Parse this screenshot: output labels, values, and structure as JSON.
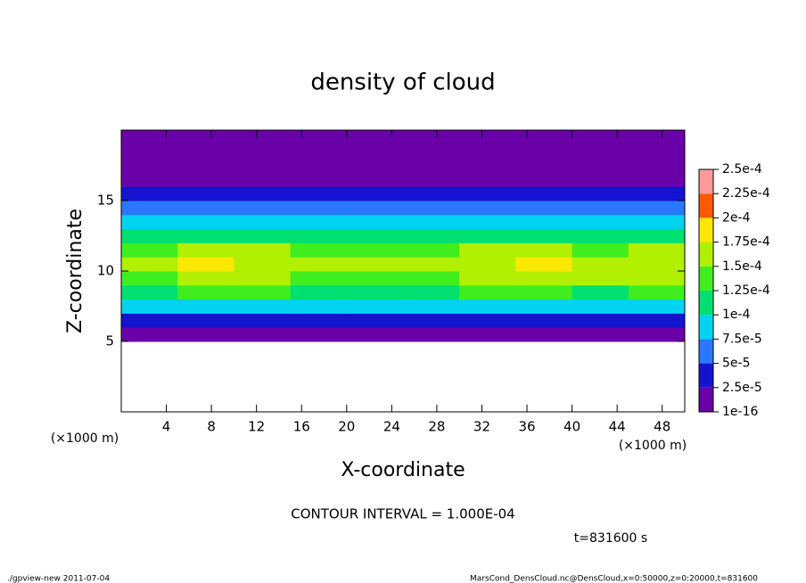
{
  "chart_data": {
    "type": "heatmap",
    "title": "density of cloud",
    "x_label": "X-coordinate",
    "y_label": "Z-coordinate",
    "x_unit": "(×1000 m)",
    "y_unit": "(×1000 m)",
    "annotation": "CONTOUR INTERVAL = 1.000E-04",
    "time_label": "t=831600 s",
    "footer_left": "./gpview-new  2011-07-04",
    "footer_right": "MarsCond_DensCloud.nc@DensCloud,x=0:50000,z=0:20000,t=831600",
    "xlim": [
      0,
      50
    ],
    "ylim": [
      0,
      20
    ],
    "xticks": [
      4,
      8,
      12,
      16,
      20,
      24,
      28,
      32,
      36,
      40,
      44,
      48
    ],
    "yticks": [
      5,
      10,
      15
    ],
    "x": [
      2.5,
      7.5,
      12.5,
      17.5,
      22.5,
      27.5,
      32.5,
      37.5,
      42.5,
      47.5
    ],
    "z": [
      0.5,
      1.5,
      2.5,
      3.5,
      4.5,
      5.5,
      6.5,
      7.5,
      8.5,
      9.5,
      10.5,
      11.5,
      12.5,
      13.5,
      14.5,
      15.5,
      16.5,
      17.5,
      18.5,
      19.5
    ],
    "values": [
      [
        null,
        null,
        null,
        null,
        null,
        null,
        null,
        null,
        null,
        null
      ],
      [
        null,
        null,
        null,
        null,
        null,
        null,
        null,
        null,
        null,
        null
      ],
      [
        null,
        null,
        null,
        null,
        null,
        null,
        null,
        null,
        null,
        null
      ],
      [
        null,
        null,
        null,
        null,
        null,
        null,
        null,
        null,
        null,
        null
      ],
      [
        null,
        null,
        null,
        null,
        null,
        null,
        null,
        null,
        null,
        null
      ],
      [
        1e-05,
        1e-05,
        1e-05,
        1e-05,
        1e-05,
        1e-05,
        1e-05,
        1e-05,
        1e-05,
        1e-05
      ],
      [
        4e-05,
        4e-05,
        4.5e-05,
        4e-05,
        4e-05,
        4e-05,
        4e-05,
        4.5e-05,
        4e-05,
        4e-05
      ],
      [
        8e-05,
        8.5e-05,
        8e-05,
        8e-05,
        8.5e-05,
        8e-05,
        8e-05,
        8.5e-05,
        8e-05,
        8e-05
      ],
      [
        0.00012,
        0.00013,
        0.000125,
        0.00012,
        0.00012,
        0.00012,
        0.000125,
        0.00013,
        0.00012,
        0.000125
      ],
      [
        0.000145,
        0.00016,
        0.000155,
        0.000145,
        0.00014,
        0.000145,
        0.000155,
        0.00016,
        0.00015,
        0.000155
      ],
      [
        0.000155,
        0.00018,
        0.00017,
        0.000155,
        0.00015,
        0.000155,
        0.00017,
        0.000175,
        0.00016,
        0.00017
      ],
      [
        0.000135,
        0.00016,
        0.00015,
        0.00014,
        0.000135,
        0.00014,
        0.00015,
        0.000155,
        0.000145,
        0.00015
      ],
      [
        0.000105,
        0.00011,
        0.00011,
        0.000105,
        0.00011,
        0.000105,
        0.000105,
        0.0001,
        0.000105,
        0.000105
      ],
      [
        8e-05,
        8.5e-05,
        8e-05,
        8e-05,
        8e-05,
        8.5e-05,
        8e-05,
        7.5e-05,
        8e-05,
        8e-05
      ],
      [
        6e-05,
        6.5e-05,
        6e-05,
        6e-05,
        6e-05,
        6.5e-05,
        5.5e-05,
        5e-05,
        6e-05,
        6e-05
      ],
      [
        4e-05,
        4e-05,
        4e-05,
        4e-05,
        4e-05,
        4e-05,
        3.5e-05,
        3e-05,
        4e-05,
        4e-05
      ],
      [
        2e-05,
        2e-05,
        2e-05,
        2e-05,
        2e-05,
        2e-05,
        2e-05,
        2e-05,
        2e-05,
        2e-05
      ],
      [
        1e-05,
        1e-05,
        1e-05,
        1e-05,
        1e-05,
        1e-05,
        1e-05,
        1e-05,
        1e-05,
        1e-05
      ],
      [
        1e-05,
        1e-05,
        1e-05,
        1e-05,
        1e-05,
        1e-05,
        1e-05,
        1e-05,
        1e-05,
        1e-05
      ],
      [
        1e-05,
        1e-05,
        1e-05,
        1e-05,
        1e-05,
        1e-05,
        1e-05,
        1e-05,
        1e-05,
        1e-05
      ]
    ],
    "levels": [
      1e-16,
      {
        "value": 2.5e-05,
        "label": "2.5e-5"
      },
      {
        "value": 5e-05,
        "label": "5e-5"
      },
      {
        "value": 7.5e-05,
        "label": "7.5e-5"
      },
      {
        "value": 0.0001,
        "label": "1e-4"
      },
      {
        "value": 0.000125,
        "label": "1.25e-4"
      },
      {
        "value": 0.00015,
        "label": "1.5e-4"
      },
      {
        "value": 0.000175,
        "label": "1.75e-4"
      },
      {
        "value": 0.0002,
        "label": "2e-4"
      },
      {
        "value": 0.000225,
        "label": "2.25e-4"
      },
      {
        "value": 0.00025,
        "label": "2.5e-4"
      }
    ],
    "colors": [
      "#6a00a8",
      "#1414d0",
      "#2a78ff",
      "#00d4f0",
      "#00e070",
      "#40ee20",
      "#b0f000",
      "#ffe800",
      "#ff5a00",
      "#ff9a9a"
    ]
  }
}
